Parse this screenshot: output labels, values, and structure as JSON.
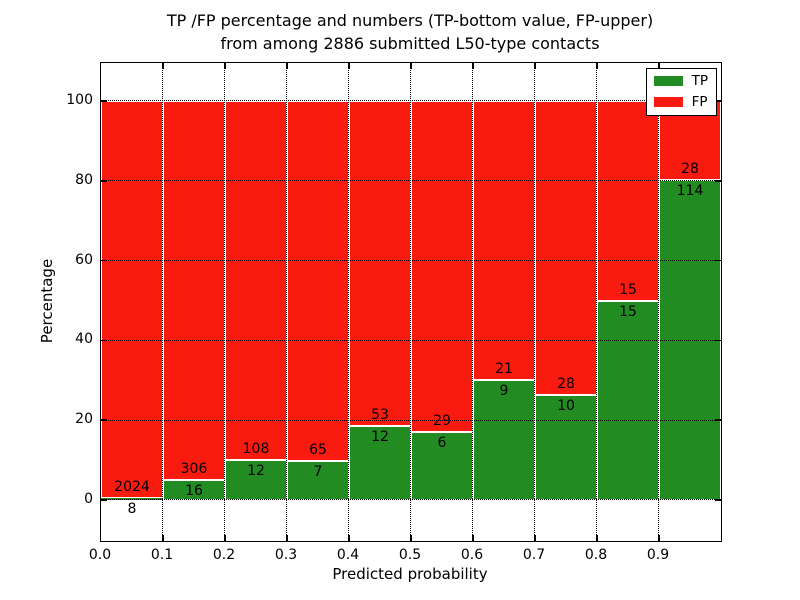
{
  "figure": {
    "title_line1": "TP /FP percentage and numbers (TP-bottom value, FP-upper)",
    "title_line2": "from among 2886 submitted L50-type contacts"
  },
  "chart_data": {
    "type": "bar",
    "stacked": true,
    "normalized_to_percent": true,
    "title": "TP /FP percentage and numbers (TP-bottom value, FP-upper)\nfrom among 2886 submitted L50-type contacts",
    "total_contacts": 2886,
    "xlabel": "Predicted probability",
    "ylabel": "Percentage",
    "xlim": [
      0.0,
      1.0
    ],
    "ylim": [
      -10.3,
      109.5
    ],
    "grid": "dotted",
    "bin_width": 0.1,
    "bin_starts": [
      0.0,
      0.1,
      0.2,
      0.3,
      0.4,
      0.5,
      0.6,
      0.7,
      0.8,
      0.9
    ],
    "xticks": {
      "values": [
        0.0,
        0.1,
        0.2,
        0.3,
        0.4,
        0.5,
        0.6,
        0.7,
        0.8,
        0.9
      ],
      "labels": [
        "0.0",
        "0.1",
        "0.2",
        "0.3",
        "0.4",
        "0.5",
        "0.6",
        "0.7",
        "0.8",
        "0.9"
      ]
    },
    "yticks": {
      "values": [
        0,
        20,
        40,
        60,
        80,
        100
      ],
      "labels": [
        "0",
        "20",
        "40",
        "60",
        "80",
        "100"
      ]
    },
    "series": [
      {
        "name": "TP",
        "color": "#228b22",
        "counts": [
          8,
          16,
          12,
          7,
          12,
          6,
          9,
          10,
          15,
          114
        ]
      },
      {
        "name": "FP",
        "color": "#fa1b10",
        "counts": [
          2024,
          306,
          108,
          65,
          53,
          29,
          21,
          28,
          15,
          28
        ]
      }
    ],
    "tp_percent_of_bin": [
      0.39,
      4.97,
      10.0,
      9.72,
      18.46,
      17.14,
      30.0,
      26.32,
      50.0,
      80.28
    ],
    "legend": {
      "position": "upper right",
      "entries": [
        "TP",
        "FP"
      ]
    }
  }
}
